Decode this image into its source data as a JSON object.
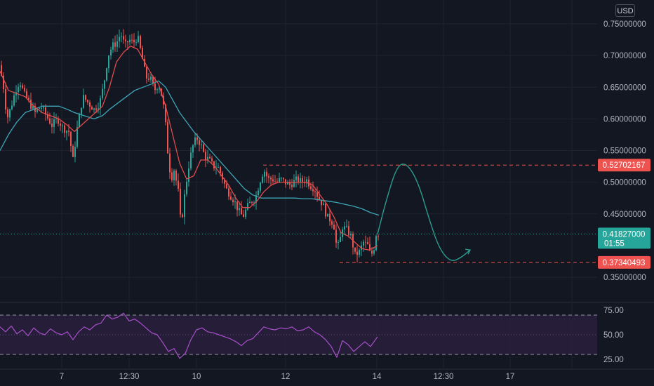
{
  "header": {
    "currency_button": "USD"
  },
  "colors": {
    "background": "#131722",
    "grid": "#1f2330",
    "candle_up": "#26a69a",
    "candle_down": "#ef5350",
    "ma_fast": "#e14b4b",
    "ma_slow": "#3ea6b6",
    "projection": "#2a9d8f",
    "level_line": "#ef5350",
    "current_price_line": "#26a69a",
    "rsi_line": "#a84fc9",
    "rsi_band": "#2a1e3d"
  },
  "chart_data": [
    {
      "type": "line",
      "subtype": "candlestick",
      "y_unit": "USD",
      "ylim": [
        0.33,
        0.755
      ],
      "x_tick_labels": [
        "7",
        "12:30",
        "10",
        "12",
        "14",
        "12:30",
        "17"
      ],
      "y_tick_labels": [
        "0.75000000",
        "0.70000000",
        "0.65000000",
        "0.60000000",
        "0.55000000",
        "0.50000000",
        "0.45000000",
        "0.35000000"
      ],
      "y_ticks": [
        0.75,
        0.7,
        0.65,
        0.6,
        0.55,
        0.5,
        0.45,
        0.35
      ],
      "price_path": [
        [
          0,
          0.685
        ],
        [
          6,
          0.66
        ],
        [
          12,
          0.6
        ],
        [
          18,
          0.62
        ],
        [
          24,
          0.645
        ],
        [
          30,
          0.66
        ],
        [
          36,
          0.64
        ],
        [
          44,
          0.625
        ],
        [
          52,
          0.61
        ],
        [
          60,
          0.62
        ],
        [
          68,
          0.605
        ],
        [
          76,
          0.59
        ],
        [
          84,
          0.6
        ],
        [
          92,
          0.585
        ],
        [
          100,
          0.58
        ],
        [
          106,
          0.535
        ],
        [
          112,
          0.585
        ],
        [
          120,
          0.635
        ],
        [
          128,
          0.625
        ],
        [
          136,
          0.615
        ],
        [
          144,
          0.625
        ],
        [
          150,
          0.655
        ],
        [
          156,
          0.7
        ],
        [
          162,
          0.715
        ],
        [
          168,
          0.72
        ],
        [
          174,
          0.735
        ],
        [
          180,
          0.715
        ],
        [
          186,
          0.725
        ],
        [
          192,
          0.72
        ],
        [
          198,
          0.73
        ],
        [
          204,
          0.7
        ],
        [
          210,
          0.665
        ],
        [
          216,
          0.665
        ],
        [
          222,
          0.645
        ],
        [
          228,
          0.655
        ],
        [
          234,
          0.63
        ],
        [
          238,
          0.59
        ],
        [
          242,
          0.535
        ],
        [
          246,
          0.505
        ],
        [
          250,
          0.52
        ],
        [
          256,
          0.485
        ],
        [
          260,
          0.43
        ],
        [
          264,
          0.47
        ],
        [
          270,
          0.52
        ],
        [
          276,
          0.555
        ],
        [
          282,
          0.57
        ],
        [
          288,
          0.56
        ],
        [
          294,
          0.54
        ],
        [
          300,
          0.535
        ],
        [
          306,
          0.525
        ],
        [
          312,
          0.525
        ],
        [
          318,
          0.51
        ],
        [
          324,
          0.49
        ],
        [
          330,
          0.48
        ],
        [
          336,
          0.47
        ],
        [
          342,
          0.455
        ],
        [
          348,
          0.445
        ],
        [
          354,
          0.46
        ],
        [
          360,
          0.47
        ],
        [
          366,
          0.475
        ],
        [
          372,
          0.5
        ],
        [
          378,
          0.52
        ],
        [
          384,
          0.505
        ],
        [
          390,
          0.505
        ],
        [
          396,
          0.5
        ],
        [
          402,
          0.505
        ],
        [
          408,
          0.5
        ],
        [
          414,
          0.495
        ],
        [
          420,
          0.5
        ],
        [
          426,
          0.505
        ],
        [
          432,
          0.5
        ],
        [
          438,
          0.505
        ],
        [
          444,
          0.495
        ],
        [
          450,
          0.49
        ],
        [
          456,
          0.475
        ],
        [
          462,
          0.465
        ],
        [
          468,
          0.445
        ],
        [
          474,
          0.44
        ],
        [
          478,
          0.43
        ],
        [
          482,
          0.395
        ],
        [
          486,
          0.405
        ],
        [
          490,
          0.43
        ],
        [
          496,
          0.425
        ],
        [
          502,
          0.415
        ],
        [
          508,
          0.385
        ],
        [
          514,
          0.39
        ],
        [
          520,
          0.405
        ],
        [
          526,
          0.4
        ],
        [
          530,
          0.385
        ],
        [
          534,
          0.39
        ],
        [
          538,
          0.418
        ]
      ],
      "ma_fast": [
        [
          0,
          0.675
        ],
        [
          12,
          0.645
        ],
        [
          24,
          0.64
        ],
        [
          36,
          0.635
        ],
        [
          48,
          0.62
        ],
        [
          60,
          0.61
        ],
        [
          72,
          0.605
        ],
        [
          84,
          0.6
        ],
        [
          96,
          0.59
        ],
        [
          106,
          0.58
        ],
        [
          116,
          0.59
        ],
        [
          126,
          0.6
        ],
        [
          136,
          0.61
        ],
        [
          146,
          0.62
        ],
        [
          156,
          0.65
        ],
        [
          166,
          0.69
        ],
        [
          176,
          0.705
        ],
        [
          186,
          0.715
        ],
        [
          196,
          0.71
        ],
        [
          206,
          0.69
        ],
        [
          216,
          0.67
        ],
        [
          226,
          0.655
        ],
        [
          236,
          0.62
        ],
        [
          246,
          0.575
        ],
        [
          256,
          0.53
        ],
        [
          266,
          0.505
        ],
        [
          276,
          0.51
        ],
        [
          286,
          0.535
        ],
        [
          296,
          0.535
        ],
        [
          306,
          0.525
        ],
        [
          316,
          0.51
        ],
        [
          326,
          0.495
        ],
        [
          336,
          0.475
        ],
        [
          346,
          0.46
        ],
        [
          356,
          0.46
        ],
        [
          366,
          0.47
        ],
        [
          376,
          0.485
        ],
        [
          386,
          0.495
        ],
        [
          396,
          0.5
        ],
        [
          406,
          0.5
        ],
        [
          416,
          0.5
        ],
        [
          426,
          0.5
        ],
        [
          436,
          0.5
        ],
        [
          446,
          0.495
        ],
        [
          456,
          0.48
        ],
        [
          466,
          0.465
        ],
        [
          476,
          0.445
        ],
        [
          486,
          0.42
        ],
        [
          496,
          0.415
        ],
        [
          506,
          0.405
        ],
        [
          516,
          0.395
        ],
        [
          526,
          0.393
        ],
        [
          538,
          0.4
        ]
      ],
      "ma_slow": [
        [
          0,
          0.55
        ],
        [
          12,
          0.575
        ],
        [
          24,
          0.595
        ],
        [
          36,
          0.61
        ],
        [
          48,
          0.615
        ],
        [
          60,
          0.62
        ],
        [
          72,
          0.62
        ],
        [
          84,
          0.62
        ],
        [
          96,
          0.615
        ],
        [
          106,
          0.61
        ],
        [
          120,
          0.605
        ],
        [
          134,
          0.6
        ],
        [
          146,
          0.605
        ],
        [
          156,
          0.615
        ],
        [
          168,
          0.625
        ],
        [
          180,
          0.635
        ],
        [
          192,
          0.645
        ],
        [
          204,
          0.65
        ],
        [
          216,
          0.655
        ],
        [
          226,
          0.66
        ],
        [
          236,
          0.65
        ],
        [
          246,
          0.63
        ],
        [
          256,
          0.61
        ],
        [
          266,
          0.595
        ],
        [
          276,
          0.58
        ],
        [
          288,
          0.565
        ],
        [
          300,
          0.55
        ],
        [
          312,
          0.535
        ],
        [
          324,
          0.52
        ],
        [
          336,
          0.505
        ],
        [
          348,
          0.49
        ],
        [
          360,
          0.48
        ],
        [
          372,
          0.475
        ],
        [
          384,
          0.475
        ],
        [
          396,
          0.475
        ],
        [
          408,
          0.475
        ],
        [
          420,
          0.475
        ],
        [
          432,
          0.474
        ],
        [
          444,
          0.474
        ],
        [
          456,
          0.472
        ],
        [
          468,
          0.47
        ],
        [
          480,
          0.468
        ],
        [
          492,
          0.465
        ],
        [
          504,
          0.462
        ],
        [
          516,
          0.458
        ],
        [
          528,
          0.452
        ],
        [
          540,
          0.448
        ]
      ],
      "projection_path": [
        [
          538,
          0.418
        ],
        [
          550,
          0.47
        ],
        [
          566,
          0.527
        ],
        [
          580,
          0.53
        ],
        [
          596,
          0.5
        ],
        [
          612,
          0.44
        ],
        [
          626,
          0.395
        ],
        [
          642,
          0.374
        ],
        [
          656,
          0.38
        ],
        [
          670,
          0.393
        ]
      ],
      "levels": [
        {
          "label": "0.52702167",
          "value": 0.52702167,
          "style": "dashed"
        },
        {
          "label": "0.37340493",
          "value": 0.37340493,
          "style": "dashed"
        }
      ],
      "current_price": {
        "label": "0.41827000",
        "value": 0.41827,
        "countdown": "01:55"
      }
    },
    {
      "type": "line",
      "indicator": "RSI",
      "ylim": [
        20,
        78
      ],
      "y_tick_labels": [
        "75.00",
        "50.00",
        "25.00"
      ],
      "y_ticks": [
        75,
        50,
        25
      ],
      "band": [
        30,
        70
      ],
      "values": [
        [
          0,
          58
        ],
        [
          8,
          53
        ],
        [
          16,
          59
        ],
        [
          24,
          51
        ],
        [
          32,
          55
        ],
        [
          40,
          49
        ],
        [
          48,
          57
        ],
        [
          56,
          52
        ],
        [
          64,
          50
        ],
        [
          72,
          56
        ],
        [
          80,
          52
        ],
        [
          88,
          50
        ],
        [
          96,
          53
        ],
        [
          104,
          45
        ],
        [
          112,
          53
        ],
        [
          120,
          58
        ],
        [
          128,
          55
        ],
        [
          136,
          60
        ],
        [
          144,
          62
        ],
        [
          152,
          70
        ],
        [
          160,
          66
        ],
        [
          168,
          68
        ],
        [
          176,
          72
        ],
        [
          184,
          64
        ],
        [
          192,
          66
        ],
        [
          200,
          62
        ],
        [
          208,
          57
        ],
        [
          216,
          52
        ],
        [
          224,
          50
        ],
        [
          232,
          42
        ],
        [
          240,
          33
        ],
        [
          248,
          36
        ],
        [
          256,
          26
        ],
        [
          264,
          31
        ],
        [
          272,
          45
        ],
        [
          280,
          55
        ],
        [
          288,
          57
        ],
        [
          296,
          53
        ],
        [
          304,
          52
        ],
        [
          312,
          50
        ],
        [
          320,
          48
        ],
        [
          328,
          46
        ],
        [
          336,
          43
        ],
        [
          344,
          39
        ],
        [
          352,
          44
        ],
        [
          360,
          46
        ],
        [
          368,
          52
        ],
        [
          376,
          58
        ],
        [
          384,
          56
        ],
        [
          392,
          55
        ],
        [
          400,
          57
        ],
        [
          408,
          56
        ],
        [
          416,
          58
        ],
        [
          424,
          54
        ],
        [
          432,
          55
        ],
        [
          440,
          58
        ],
        [
          448,
          53
        ],
        [
          456,
          50
        ],
        [
          464,
          45
        ],
        [
          472,
          38
        ],
        [
          480,
          27
        ],
        [
          488,
          44
        ],
        [
          496,
          40
        ],
        [
          504,
          33
        ],
        [
          512,
          38
        ],
        [
          520,
          43
        ],
        [
          528,
          38
        ],
        [
          538,
          48
        ]
      ]
    }
  ]
}
